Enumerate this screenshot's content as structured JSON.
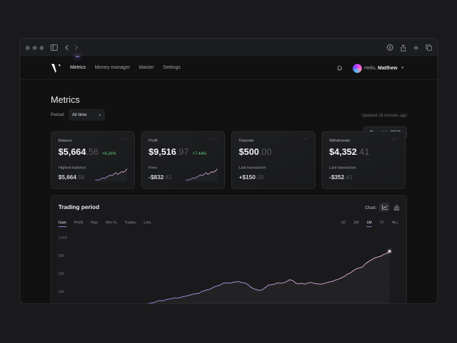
{
  "browser": {
    "icons": [
      "sidebar-icon",
      "back-icon",
      "forward-icon",
      "download-icon",
      "share-icon",
      "new-tab-icon",
      "tabs-icon"
    ]
  },
  "nav": {
    "items": [
      {
        "label": "Metrics",
        "active": true
      },
      {
        "label": "Money manager",
        "active": false
      },
      {
        "label": "Master",
        "active": false
      },
      {
        "label": "Settings",
        "active": false
      }
    ],
    "greeting": "Hello,",
    "user_name": "Matthew"
  },
  "page": {
    "title": "Metrics",
    "updated": "Updated 26 minutes ago",
    "period_label": "Period:",
    "period_value": "All time",
    "export_label": "Export to PDF"
  },
  "cards": [
    {
      "label": "Balance",
      "value": "$5,664",
      "cents": ".56",
      "change": "+6.2k%",
      "sub_label": "Highest balance",
      "sub_value": "$5,664",
      "sub_cents": ".56",
      "has_spark": true
    },
    {
      "label": "Profit",
      "value": "$9,516",
      "cents": ".97",
      "change": "+7.44%",
      "sub_label": "Fees",
      "sub_value": "-$832",
      "sub_cents": ".61",
      "has_spark": true
    },
    {
      "label": "Deposits",
      "value": "$500",
      "cents": ".00",
      "change": "",
      "sub_label": "Last transaction",
      "sub_value": "+$150",
      "sub_cents": ".00",
      "has_spark": false
    },
    {
      "label": "Withdrawals",
      "value": "$4,352",
      "cents": ".41",
      "change": "",
      "sub_label": "Last transaction",
      "sub_value": "-$352",
      "sub_cents": ".41",
      "has_spark": false
    }
  ],
  "trading": {
    "title": "Trading period",
    "chart_label": "Chart:",
    "tabs": [
      "Gain",
      "Profit",
      "Pips",
      "Win %",
      "Trades",
      "Lots"
    ],
    "active_tab": "Gain",
    "ranges": [
      "1D",
      "1W",
      "1M",
      "1Y",
      "ALL"
    ],
    "active_range": "1M"
  },
  "colors": {
    "accent": "#8a7fd8",
    "positive": "#5fcf7f",
    "line_start": "#8a7fd8",
    "line_end": "#e0b0c8"
  },
  "chart_data": {
    "type": "line",
    "title": "Trading period",
    "yticks": [
      "1,000",
      "800",
      "600",
      "400"
    ],
    "ylim": [
      200,
      1000
    ],
    "grid": true,
    "values": [
      235,
      240,
      238,
      250,
      255,
      270,
      265,
      275,
      280,
      285,
      300,
      310,
      305,
      318,
      325,
      330,
      340,
      335,
      345,
      355,
      360,
      370,
      380,
      385,
      390,
      410,
      420,
      430,
      440,
      460,
      470,
      480,
      500,
      505,
      500,
      510,
      515,
      520,
      510,
      505,
      490,
      460,
      440,
      430,
      420,
      430,
      455,
      480,
      485,
      490,
      505,
      500,
      505,
      520,
      540,
      530,
      500,
      495,
      500,
      490,
      505,
      510,
      500,
      495,
      490,
      495,
      505,
      515,
      520,
      535,
      545,
      560,
      575,
      600,
      615,
      640,
      660,
      670,
      680,
      715,
      740,
      760,
      780,
      790,
      800,
      820,
      830,
      855
    ]
  },
  "spark_data": [
    20,
    22,
    21,
    24,
    26,
    25,
    28,
    30,
    33,
    31,
    35,
    38,
    34,
    37,
    40,
    39,
    42,
    47
  ]
}
